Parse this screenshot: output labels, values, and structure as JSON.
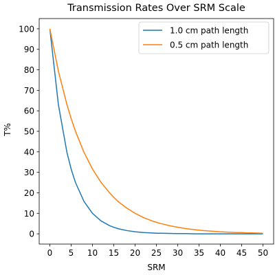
{
  "chart_data": {
    "type": "line",
    "title": "Transmission Rates Over SRM Scale",
    "xlabel": "SRM",
    "ylabel": "T%",
    "xlim": [
      -2.5,
      52.5
    ],
    "ylim": [
      -5,
      105
    ],
    "xticks": [
      0,
      5,
      10,
      15,
      20,
      25,
      30,
      35,
      40,
      45,
      50
    ],
    "yticks": [
      0,
      10,
      20,
      30,
      40,
      50,
      60,
      70,
      80,
      90,
      100
    ],
    "x": [
      0,
      2,
      4,
      5,
      6,
      8,
      10,
      12,
      14,
      15,
      16,
      18,
      20,
      22,
      24,
      25,
      26,
      28,
      30,
      32,
      34,
      35,
      36,
      38,
      40,
      42,
      44,
      45,
      46,
      48,
      50
    ],
    "grid": false,
    "legend_position": "upper-right",
    "series": [
      {
        "name": "1.0 cm path length",
        "color": "#1f77b4",
        "values": [
          100,
          63.1,
          39.8,
          31.6,
          25.1,
          15.8,
          10.0,
          6.3,
          4.0,
          3.2,
          2.5,
          1.6,
          1.0,
          0.6,
          0.4,
          0.3,
          0.3,
          0.2,
          0.1,
          0.1,
          0.0,
          0.0,
          0.0,
          0.0,
          0.0,
          0.0,
          0.0,
          0.0,
          0.0,
          0.0,
          0.0
        ]
      },
      {
        "name": "0.5 cm path length",
        "color": "#ff7f0e",
        "values": [
          100,
          79.4,
          63.1,
          56.2,
          50.1,
          39.8,
          31.6,
          25.1,
          20.0,
          17.8,
          15.8,
          12.6,
          10.0,
          7.9,
          6.3,
          5.6,
          5.0,
          4.0,
          3.2,
          2.5,
          2.0,
          1.8,
          1.6,
          1.3,
          1.0,
          0.8,
          0.6,
          0.6,
          0.5,
          0.4,
          0.3
        ]
      }
    ]
  }
}
